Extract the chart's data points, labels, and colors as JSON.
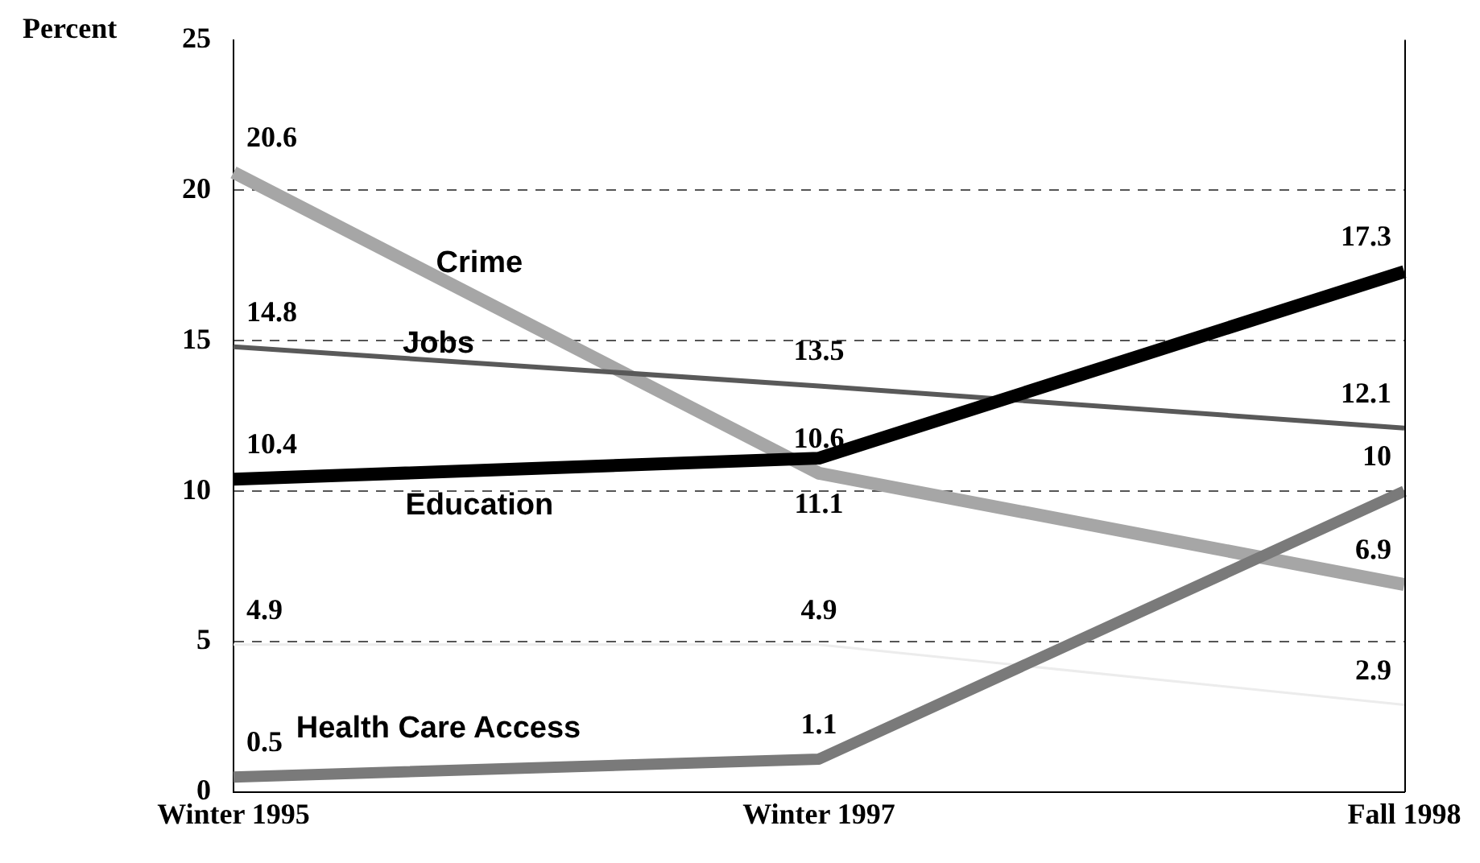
{
  "chart_data": {
    "type": "line",
    "ylabel": "Percent",
    "categories": [
      "Winter 1995",
      "Winter 1997",
      "Fall 1998"
    ],
    "series": [
      {
        "name": "Crime",
        "color": "#a6a6a6",
        "values": [
          20.6,
          10.6,
          6.9
        ]
      },
      {
        "name": "Jobs",
        "color": "#595959",
        "values": [
          14.8,
          13.5,
          12.1
        ]
      },
      {
        "name": "Education",
        "color": "#000000",
        "values": [
          10.4,
          11.1,
          17.3
        ]
      },
      {
        "name": "Health Care Access",
        "color": "#7a7a7a",
        "values": [
          0.5,
          1.1,
          10
        ]
      },
      {
        "color": "#ececec",
        "values": [
          4.9,
          4.9,
          2.9
        ]
      }
    ],
    "ylim": [
      0,
      25
    ],
    "yticks": [
      0,
      5,
      10,
      15,
      20,
      25
    ],
    "grid": "y",
    "data_labels": true,
    "legend": false,
    "marker": "none",
    "line_style": "solid"
  }
}
